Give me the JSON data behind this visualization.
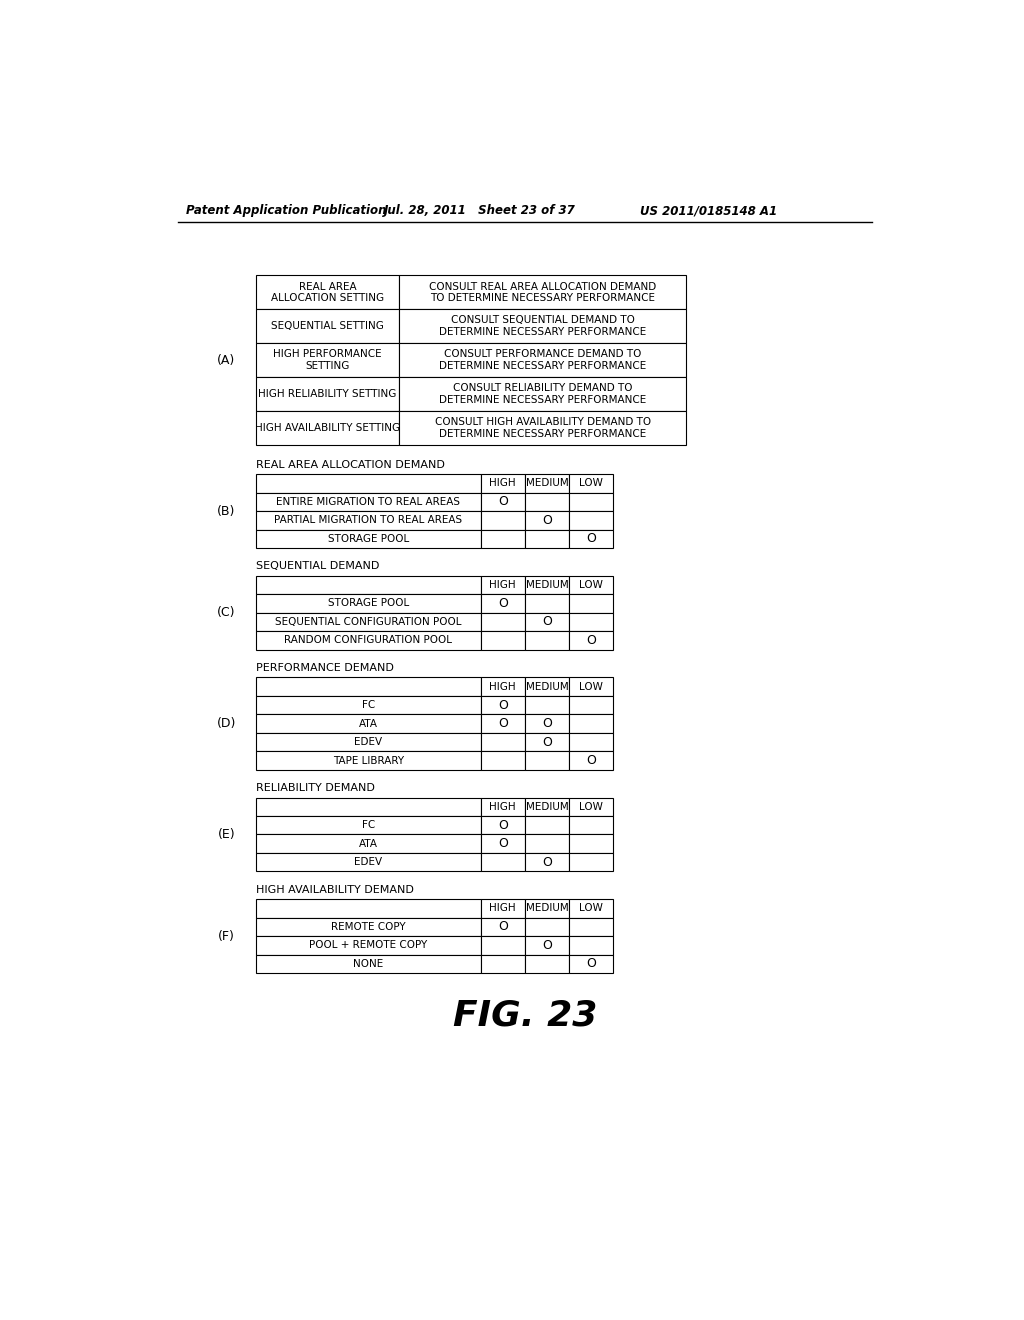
{
  "header_left": "Patent Application Publication",
  "header_mid": "Jul. 28, 2011   Sheet 23 of 37",
  "header_right": "US 2011/0185148 A1",
  "footer": "FIG. 23",
  "table_A": {
    "label": "(A)",
    "rows": [
      [
        "REAL AREA\nALLOCATION SETTING",
        "CONSULT REAL AREA ALLOCATION DEMAND\nTO DETERMINE NECESSARY PERFORMANCE"
      ],
      [
        "SEQUENTIAL SETTING",
        "CONSULT SEQUENTIAL DEMAND TO\nDETERMINE NECESSARY PERFORMANCE"
      ],
      [
        "HIGH PERFORMANCE\nSETTING",
        "CONSULT PERFORMANCE DEMAND TO\nDETERMINE NECESSARY PERFORMANCE"
      ],
      [
        "HIGH RELIABILITY SETTING",
        "CONSULT RELIABILITY DEMAND TO\nDETERMINE NECESSARY PERFORMANCE"
      ],
      [
        "HIGH AVAILABILITY SETTING",
        "CONSULT HIGH AVAILABILITY DEMAND TO\nDETERMINE NECESSARY PERFORMANCE"
      ]
    ]
  },
  "table_B": {
    "label": "(B)",
    "title": "REAL AREA ALLOCATION DEMAND",
    "rows": [
      [
        "ENTIRE MIGRATION TO REAL AREAS",
        "O",
        "",
        ""
      ],
      [
        "PARTIAL MIGRATION TO REAL AREAS",
        "",
        "O",
        ""
      ],
      [
        "STORAGE POOL",
        "",
        "",
        "O"
      ]
    ]
  },
  "table_C": {
    "label": "(C)",
    "title": "SEQUENTIAL DEMAND",
    "rows": [
      [
        "STORAGE POOL",
        "O",
        "",
        ""
      ],
      [
        "SEQUENTIAL CONFIGURATION POOL",
        "",
        "O",
        ""
      ],
      [
        "RANDOM CONFIGURATION POOL",
        "",
        "",
        "O"
      ]
    ]
  },
  "table_D": {
    "label": "(D)",
    "title": "PERFORMANCE DEMAND",
    "rows": [
      [
        "FC",
        "O",
        "",
        ""
      ],
      [
        "ATA",
        "O",
        "O",
        ""
      ],
      [
        "EDEV",
        "",
        "O",
        ""
      ],
      [
        "TAPE LIBRARY",
        "",
        "",
        "O"
      ]
    ]
  },
  "table_E": {
    "label": "(E)",
    "title": "RELIABILITY DEMAND",
    "rows": [
      [
        "FC",
        "O",
        "",
        ""
      ],
      [
        "ATA",
        "O",
        "",
        ""
      ],
      [
        "EDEV",
        "",
        "O",
        ""
      ]
    ]
  },
  "table_F": {
    "label": "(F)",
    "title": "HIGH AVAILABILITY DEMAND",
    "rows": [
      [
        "REMOTE COPY",
        "O",
        "",
        ""
      ],
      [
        "POOL + REMOTE COPY",
        "",
        "O",
        ""
      ],
      [
        "NONE",
        "",
        "",
        "O"
      ]
    ]
  }
}
